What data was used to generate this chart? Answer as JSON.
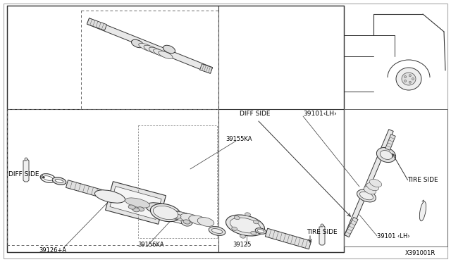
{
  "bg_color": "#ffffff",
  "line_color": "#333333",
  "text_color": "#000000",
  "fig_width": 6.4,
  "fig_height": 3.72,
  "dpi": 100,
  "diagram_ref": "X391001R",
  "labels": {
    "diff_side_left": "DIFF SIDE",
    "diff_side_top": "DIFF SIDE",
    "tire_side_right": "TIRE SIDE",
    "tire_side_bottom": "TIRE SIDE",
    "part_39101_lh_top": "39101〈LH〉",
    "part_39101_lh_bottom": "39101 〈LH〉",
    "part_39155ka": "39155KA",
    "part_39156ka": "39156KA",
    "part_39126": "39126+A",
    "part_39125": "39125"
  }
}
